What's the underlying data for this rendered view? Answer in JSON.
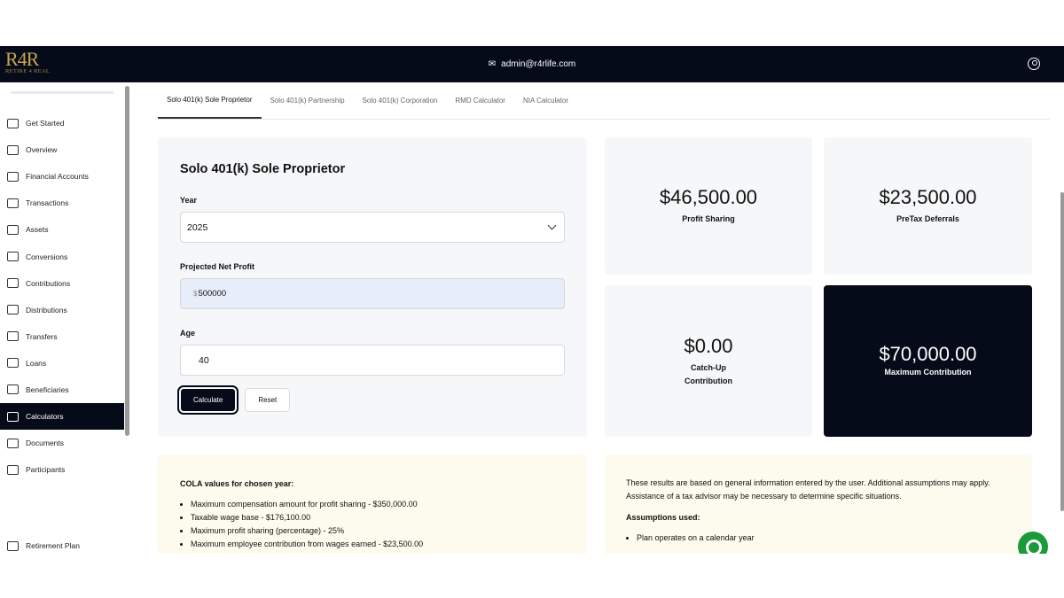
{
  "header": {
    "logo_text": "R4R",
    "logo_tagline": "RETIRE 4 REAL",
    "email": "admin@r4rlife.com"
  },
  "sidebar": {
    "items": [
      {
        "label": "Get Started",
        "icon": "rocket-icon"
      },
      {
        "label": "Overview",
        "icon": "store-icon"
      },
      {
        "label": "Financial Accounts",
        "icon": "building-icon"
      },
      {
        "label": "Transactions",
        "icon": "bank-icon"
      },
      {
        "label": "Assets",
        "icon": "dollar-icon"
      },
      {
        "label": "Conversions",
        "icon": "arrow-back-icon"
      },
      {
        "label": "Contributions",
        "icon": "contribution-icon"
      },
      {
        "label": "Distributions",
        "icon": "grid-icon"
      },
      {
        "label": "Transfers",
        "icon": "transfer-icon"
      },
      {
        "label": "Loans",
        "icon": "cash-icon"
      },
      {
        "label": "Beneficiaries",
        "icon": "people-list-icon"
      },
      {
        "label": "Calculators",
        "icon": "calculator-icon",
        "active": true
      },
      {
        "label": "Documents",
        "icon": "document-icon"
      },
      {
        "label": "Participants",
        "icon": "participants-icon"
      }
    ],
    "bottom_item": "Retirement Plan"
  },
  "tabs": [
    "Solo 401(k) Sole Proprietor",
    "Solo 401(k) Partnership",
    "Solo 401(k) Corporation",
    "RMD Calculator",
    "NIA Calculator"
  ],
  "form": {
    "title": "Solo 401(k) Sole Proprietor",
    "year_label": "Year",
    "year_value": "2025",
    "profit_label": "Projected Net Profit",
    "profit_prefix": "$",
    "profit_value": "500000",
    "age_label": "Age",
    "age_value": "40",
    "calculate": "Calculate",
    "reset": "Reset"
  },
  "results": {
    "profit_sharing": {
      "value": "$46,500.00",
      "label": "Profit Sharing"
    },
    "pretax": {
      "value": "$23,500.00",
      "label": "PreTax Deferrals"
    },
    "catchup": {
      "value": "$0.00",
      "label1": "Catch-Up",
      "label2": "Contribution"
    },
    "maximum": {
      "value": "$70,000.00",
      "label": "Maximum Contribution"
    }
  },
  "cola": {
    "title": "COLA values for chosen year:",
    "items": [
      "Maximum compensation amount for profit sharing - $350,000.00",
      "Taxable wage base - $176,100.00",
      "Maximum profit sharing (percentage) - 25%",
      "Maximum employee contribution from wages earned - $23,500.00"
    ]
  },
  "assumptions": {
    "intro": "These results are based on general information entered by the user. Additional assumptions may apply. Assistance of a tax advisor may be necessary to determine specific situations.",
    "title": "Assumptions used:",
    "items": [
      "Plan operates on a calendar year"
    ]
  }
}
